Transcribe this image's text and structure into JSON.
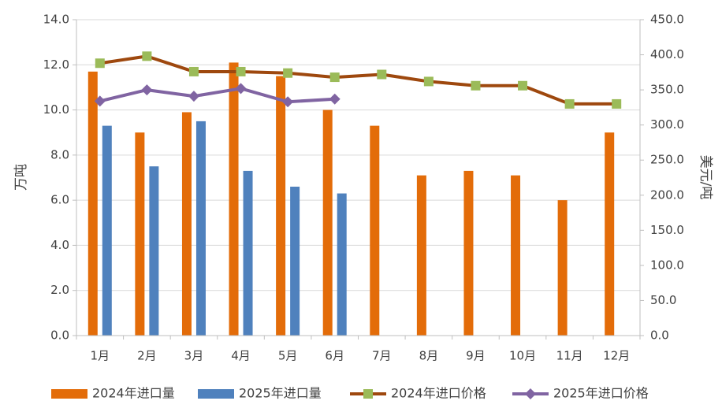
{
  "chart_data": {
    "type": "bar",
    "categories": [
      "1月",
      "2月",
      "3月",
      "4月",
      "5月",
      "6月",
      "7月",
      "8月",
      "9月",
      "10月",
      "11月",
      "12月"
    ],
    "ylabel_left": "万吨",
    "ylabel_right": "美元/吨",
    "ylim_left": [
      0,
      14
    ],
    "ylim_right": [
      0,
      450
    ],
    "yticks_left": [
      "0.0",
      "2.0",
      "4.0",
      "6.0",
      "8.0",
      "10.0",
      "12.0",
      "14.0"
    ],
    "yticks_right": [
      "0.0",
      "50.0",
      "100.0",
      "150.0",
      "200.0",
      "250.0",
      "300.0",
      "350.0",
      "400.0",
      "450.0"
    ],
    "grid": true,
    "legend_position": "bottom",
    "series": [
      {
        "name": "2024年进口量",
        "type": "bar",
        "axis": "left",
        "color": "#E36C09",
        "values": [
          11.7,
          9.0,
          9.9,
          12.1,
          11.5,
          10.0,
          9.3,
          7.1,
          7.3,
          7.1,
          6.0,
          9.0
        ]
      },
      {
        "name": "2025年进口量",
        "type": "bar",
        "axis": "left",
        "color": "#4F81BD",
        "values": [
          9.3,
          7.5,
          9.5,
          7.3,
          6.6,
          6.3,
          null,
          null,
          null,
          null,
          null,
          null
        ]
      },
      {
        "name": "2024年进口价格",
        "type": "line",
        "axis": "right",
        "color": "#9E480E",
        "marker": "square",
        "marker_color": "#9BBB59",
        "values": [
          388,
          398,
          376,
          376,
          374,
          368,
          372,
          362,
          356,
          356,
          330,
          330
        ]
      },
      {
        "name": "2025年进口价格",
        "type": "line",
        "axis": "right",
        "color": "#8064A2",
        "marker": "diamond",
        "marker_color": "#8064A2",
        "values": [
          334,
          350,
          341,
          352,
          333,
          337,
          null,
          null,
          null,
          null,
          null,
          null
        ]
      }
    ]
  }
}
